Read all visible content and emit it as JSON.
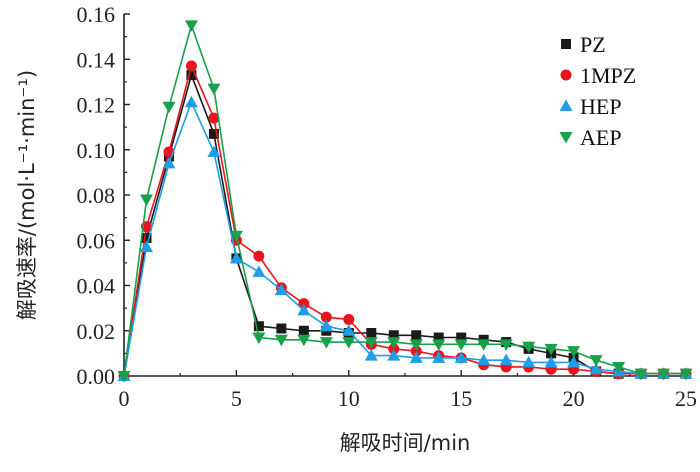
{
  "chart_data": {
    "type": "line",
    "xlabel": "解吸时间/min",
    "ylabel": "解吸速率/(mol·L⁻¹·min⁻¹)",
    "xlim": [
      0,
      25
    ],
    "ylim": [
      0,
      0.16
    ],
    "x_ticks": [
      "0",
      "5",
      "10",
      "15",
      "20",
      "25"
    ],
    "y_ticks": [
      "0.00",
      "0.02",
      "0.04",
      "0.06",
      "0.08",
      "0.10",
      "0.12",
      "0.14",
      "0.16"
    ],
    "grid": false,
    "legend_position": "top-right",
    "x": [
      0,
      1,
      2,
      3,
      4,
      5,
      6,
      7,
      8,
      9,
      10,
      11,
      12,
      13,
      14,
      15,
      16,
      17,
      18,
      19,
      20,
      21,
      22,
      23,
      24,
      25
    ],
    "series": [
      {
        "name": "PZ",
        "color": "#1a1a1a",
        "marker": "square",
        "values": [
          0,
          0.061,
          0.097,
          0.133,
          0.107,
          0.052,
          0.022,
          0.021,
          0.02,
          0.02,
          0.019,
          0.019,
          0.018,
          0.018,
          0.017,
          0.017,
          0.016,
          0.015,
          0.012,
          0.01,
          0.008,
          0.002,
          0.001,
          0.001,
          0.001,
          0.001
        ]
      },
      {
        "name": "1MPZ",
        "color": "#e8151f",
        "marker": "circle",
        "values": [
          0,
          0.066,
          0.099,
          0.137,
          0.114,
          0.06,
          0.053,
          0.039,
          0.032,
          0.026,
          0.025,
          0.014,
          0.012,
          0.011,
          0.009,
          0.008,
          0.005,
          0.004,
          0.004,
          0.003,
          0.003,
          0.002,
          0.001,
          0.001,
          0.001,
          0.001
        ]
      },
      {
        "name": "HEP",
        "color": "#1e9ee6",
        "marker": "triangle-up",
        "values": [
          0,
          0.057,
          0.094,
          0.121,
          0.099,
          0.052,
          0.046,
          0.038,
          0.029,
          0.022,
          0.02,
          0.009,
          0.009,
          0.008,
          0.008,
          0.008,
          0.007,
          0.007,
          0.006,
          0.006,
          0.006,
          0.003,
          0.002,
          0.001,
          0.001,
          0.001
        ]
      },
      {
        "name": "AEP",
        "color": "#18a04a",
        "marker": "triangle-down",
        "values": [
          0,
          0.078,
          0.119,
          0.155,
          0.127,
          0.062,
          0.017,
          0.016,
          0.016,
          0.015,
          0.015,
          0.015,
          0.015,
          0.014,
          0.014,
          0.014,
          0.014,
          0.014,
          0.013,
          0.012,
          0.011,
          0.007,
          0.004,
          0.001,
          0.001,
          0.001
        ]
      }
    ]
  }
}
